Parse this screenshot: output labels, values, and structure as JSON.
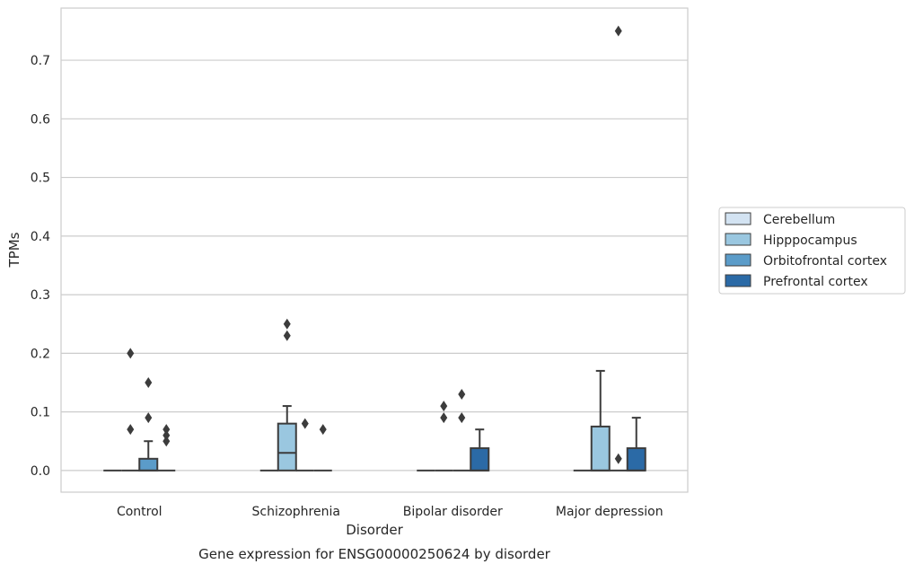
{
  "chart_data": {
    "type": "box",
    "title": "Gene expression for ENSG00000250624 by disorder",
    "xlabel": "Disorder",
    "ylabel": "TPMs",
    "ylim": [
      -0.037,
      0.789
    ],
    "yticks": [
      0.0,
      0.1,
      0.2,
      0.3,
      0.4,
      0.5,
      0.6,
      0.7
    ],
    "ytick_labels": [
      "0.0",
      "0.1",
      "0.2",
      "0.3",
      "0.4",
      "0.5",
      "0.6",
      "0.7"
    ],
    "grid": "horizontal",
    "legend_position": "right",
    "categories": [
      "Control",
      "Schizophrenia",
      "Bipolar disorder",
      "Major depression"
    ],
    "series": [
      {
        "name": "Cerebellum",
        "color": "#d3e3f2",
        "boxes": [
          {
            "q1": 0,
            "median": 0,
            "q3": 0,
            "whisker_low": 0,
            "whisker_high": 0,
            "outliers": []
          },
          {
            "q1": 0,
            "median": 0,
            "q3": 0,
            "whisker_low": 0,
            "whisker_high": 0,
            "outliers": []
          },
          {
            "q1": 0,
            "median": 0,
            "q3": 0,
            "whisker_low": 0,
            "whisker_high": 0,
            "outliers": []
          },
          {
            "q1": 0,
            "median": 0,
            "q3": 0,
            "whisker_low": 0,
            "whisker_high": 0,
            "outliers": []
          }
        ]
      },
      {
        "name": "Hipppocampus",
        "color": "#9ac7e0",
        "boxes": [
          {
            "q1": 0,
            "median": 0,
            "q3": 0,
            "whisker_low": 0,
            "whisker_high": 0,
            "outliers": [
              0.07,
              0.2
            ]
          },
          {
            "q1": 0,
            "median": 0.03,
            "q3": 0.08,
            "whisker_low": 0,
            "whisker_high": 0.11,
            "outliers": [
              0.23,
              0.25
            ]
          },
          {
            "q1": 0,
            "median": 0,
            "q3": 0,
            "whisker_low": 0,
            "whisker_high": 0,
            "outliers": [
              0.09,
              0.11
            ]
          },
          {
            "q1": 0,
            "median": 0,
            "q3": 0.075,
            "whisker_low": 0,
            "whisker_high": 0.17,
            "outliers": []
          }
        ]
      },
      {
        "name": "Orbitofrontal cortex",
        "color": "#5b9cc9",
        "boxes": [
          {
            "q1": 0,
            "median": 0,
            "q3": 0.02,
            "whisker_low": 0,
            "whisker_high": 0.05,
            "outliers": [
              0.09,
              0.15
            ]
          },
          {
            "q1": 0,
            "median": 0,
            "q3": 0,
            "whisker_low": 0,
            "whisker_high": 0,
            "outliers": [
              0.08
            ]
          },
          {
            "q1": 0,
            "median": 0,
            "q3": 0,
            "whisker_low": 0,
            "whisker_high": 0,
            "outliers": [
              0.09,
              0.13
            ]
          },
          {
            "q1": 0,
            "median": 0,
            "q3": 0,
            "whisker_low": 0,
            "whisker_high": 0,
            "outliers": [
              0.02,
              0.75
            ]
          }
        ]
      },
      {
        "name": "Prefrontal cortex",
        "color": "#2b6aa6",
        "boxes": [
          {
            "q1": 0,
            "median": 0,
            "q3": 0,
            "whisker_low": 0,
            "whisker_high": 0,
            "outliers": [
              0.05,
              0.06,
              0.07
            ]
          },
          {
            "q1": 0,
            "median": 0,
            "q3": 0,
            "whisker_low": 0,
            "whisker_high": 0,
            "outliers": [
              0.07
            ]
          },
          {
            "q1": 0,
            "median": 0,
            "q3": 0.038,
            "whisker_low": 0,
            "whisker_high": 0.07,
            "outliers": []
          },
          {
            "q1": 0,
            "median": 0,
            "q3": 0.038,
            "whisker_low": 0,
            "whisker_high": 0.09,
            "outliers": []
          }
        ]
      }
    ]
  },
  "colors": {
    "grid": "#cccccc",
    "axis_frame": "#cccccc",
    "box_edge": "#3c3c3c",
    "text": "#262626"
  }
}
